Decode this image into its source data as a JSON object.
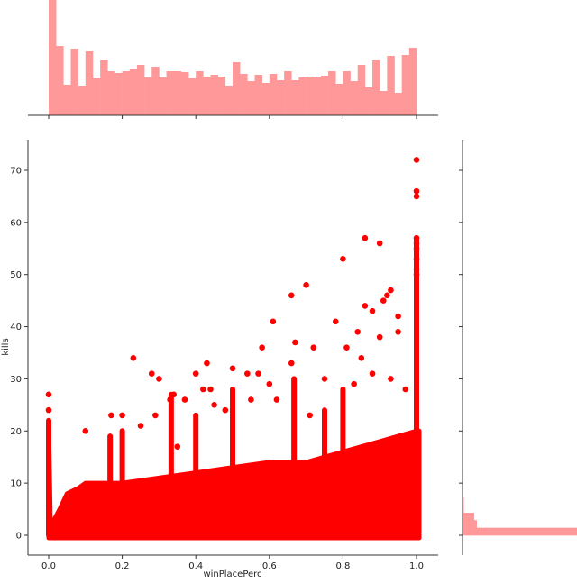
{
  "chart_data": {
    "type": "scatter",
    "kind": "jointplot",
    "xlabel": "winPlacePerc",
    "ylabel": "kills",
    "xlim": [
      -0.1,
      1.06
    ],
    "ylim": [
      -3.7,
      75.6
    ],
    "xticks": [
      0.0,
      0.2,
      0.4,
      0.6,
      0.8,
      1.0
    ],
    "xtick_labels": [
      "0.0",
      "0.2",
      "0.4",
      "0.6",
      "0.8",
      "1.0"
    ],
    "yticks": [
      0,
      10,
      20,
      30,
      40,
      50,
      60,
      70
    ],
    "ytick_labels": [
      "0",
      "10",
      "20",
      "30",
      "40",
      "50",
      "60",
      "70"
    ],
    "grid": false,
    "colors": {
      "scatter": "#ff0000",
      "histogram": "#ff9999",
      "axis": "#333333"
    },
    "dense_region_upper_envelope": [
      [
        0.0,
        22
      ],
      [
        0.005,
        1.5
      ],
      [
        0.015,
        3
      ],
      [
        0.03,
        5
      ],
      [
        0.05,
        8
      ],
      [
        0.08,
        9
      ],
      [
        0.1,
        10
      ],
      [
        0.2,
        10
      ],
      [
        0.3,
        11
      ],
      [
        0.4,
        12
      ],
      [
        0.5,
        13
      ],
      [
        0.6,
        14
      ],
      [
        0.7,
        14
      ],
      [
        0.8,
        16
      ],
      [
        0.9,
        18
      ],
      [
        0.95,
        19
      ],
      [
        1.0,
        20
      ]
    ],
    "vertical_columns": [
      [
        0.0,
        22
      ],
      [
        0.167,
        19
      ],
      [
        0.2,
        20
      ],
      [
        0.333,
        27
      ],
      [
        0.4,
        23
      ],
      [
        0.5,
        28
      ],
      [
        0.667,
        30
      ],
      [
        0.75,
        24
      ],
      [
        0.8,
        28
      ],
      [
        1.0,
        57
      ]
    ],
    "points": [
      [
        0.0,
        27
      ],
      [
        0.0,
        24
      ],
      [
        0.1,
        20
      ],
      [
        0.23,
        34
      ],
      [
        0.28,
        31
      ],
      [
        0.3,
        30
      ],
      [
        0.34,
        27
      ],
      [
        0.37,
        26
      ],
      [
        0.4,
        31
      ],
      [
        0.43,
        33
      ],
      [
        0.42,
        28
      ],
      [
        0.5,
        32
      ],
      [
        0.54,
        31
      ],
      [
        0.57,
        31
      ],
      [
        0.6,
        29
      ],
      [
        0.61,
        41
      ],
      [
        0.58,
        36
      ],
      [
        0.66,
        46
      ],
      [
        0.67,
        37
      ],
      [
        0.7,
        48
      ],
      [
        0.72,
        36
      ],
      [
        0.78,
        41
      ],
      [
        0.8,
        53
      ],
      [
        0.81,
        36
      ],
      [
        0.84,
        39
      ],
      [
        0.86,
        57
      ],
      [
        0.86,
        44
      ],
      [
        0.88,
        43
      ],
      [
        0.9,
        56
      ],
      [
        0.9,
        38
      ],
      [
        0.91,
        45
      ],
      [
        0.92,
        46
      ],
      [
        0.93,
        47
      ],
      [
        0.95,
        39
      ],
      [
        0.95,
        42
      ],
      [
        1.0,
        72
      ],
      [
        1.0,
        66
      ],
      [
        1.0,
        65
      ],
      [
        1.0,
        57
      ],
      [
        1.0,
        56
      ],
      [
        1.0,
        55
      ],
      [
        1.0,
        53
      ],
      [
        1.0,
        51
      ],
      [
        1.0,
        50
      ],
      [
        0.2,
        23
      ],
      [
        0.17,
        23
      ],
      [
        0.44,
        28
      ],
      [
        0.48,
        24
      ],
      [
        0.75,
        30
      ],
      [
        0.85,
        34
      ],
      [
        0.66,
        33
      ],
      [
        0.55,
        26
      ],
      [
        0.33,
        26
      ],
      [
        0.35,
        17
      ],
      [
        0.25,
        21
      ],
      [
        0.29,
        23
      ],
      [
        0.45,
        25
      ],
      [
        0.62,
        26
      ],
      [
        0.71,
        23
      ],
      [
        0.83,
        29
      ],
      [
        0.88,
        31
      ],
      [
        0.93,
        30
      ],
      [
        0.97,
        28
      ]
    ],
    "top_histogram": {
      "bins": 50,
      "range": [
        0,
        1
      ],
      "ylim": [
        0,
        128
      ],
      "values": [
        130,
        77,
        34,
        74,
        33,
        71,
        41,
        61,
        49,
        47,
        49,
        51,
        56,
        42,
        54,
        42,
        49,
        49,
        48,
        41,
        49,
        43,
        45,
        43,
        33,
        59,
        46,
        38,
        45,
        36,
        46,
        39,
        49,
        39,
        42,
        43,
        42,
        44,
        49,
        35,
        49,
        38,
        56,
        31,
        61,
        27,
        66,
        25,
        67,
        75
      ]
    },
    "right_histogram": {
      "bin_width": 1.44,
      "xlim": [
        0,
        127
      ],
      "values": [
        200,
        16,
        13,
        1.5,
        1.5,
        1,
        1,
        0.8,
        0.6,
        0.5,
        0.4,
        0.3
      ]
    }
  }
}
